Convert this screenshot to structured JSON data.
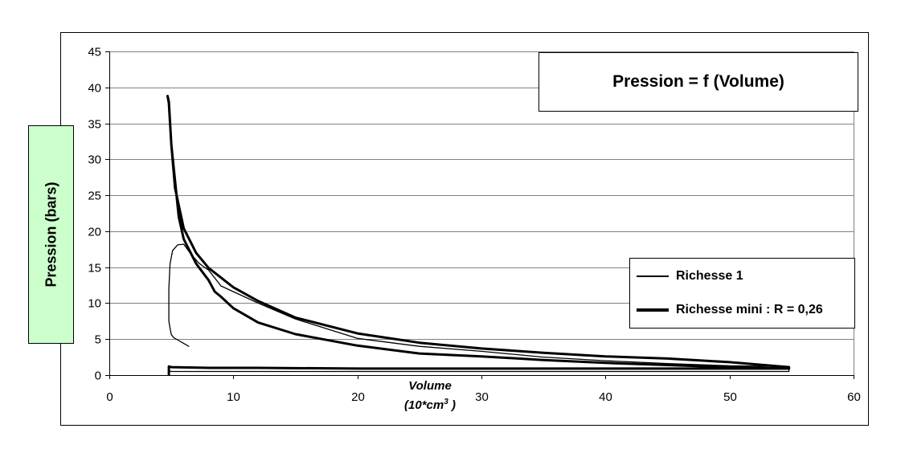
{
  "chart_data": {
    "type": "line",
    "title": "Pression = f (Volume)",
    "ylabel": "Pression  (bars)",
    "xlabel_line1": "Volume",
    "xlabel_line2_base": "(10*cm",
    "xlabel_line2_sup": "3",
    "xlabel_line2_end": " )",
    "xlim": [
      0,
      60
    ],
    "ylim": [
      0,
      45
    ],
    "x_ticks": [
      "0",
      "10",
      "20",
      "30",
      "40",
      "50",
      "60"
    ],
    "y_ticks": [
      "0",
      "5",
      "10",
      "15",
      "20",
      "25",
      "30",
      "35",
      "40",
      "45"
    ],
    "grid": "horizontal",
    "legend_position": "right",
    "series": [
      {
        "name": "Richesse 1",
        "line_weight": "thin",
        "x": [
          4.8,
          4.9,
          5.0,
          5.4,
          6.2,
          7.0,
          9.0,
          12.0,
          15.0,
          18.0,
          22.0,
          26.0,
          30.0,
          35.0,
          40.0,
          45.0,
          50.0,
          54.8,
          54.8,
          50.0,
          45.0,
          40.0,
          35.0,
          30.0,
          25.0,
          20.0,
          15.0,
          12.0,
          10.0,
          9.0,
          8.0,
          7.5,
          7.2,
          6.5,
          6.0,
          5.5,
          5.1,
          4.9,
          4.8,
          4.8,
          4.8,
          4.9,
          5.0,
          5.2,
          5.6,
          6.0,
          6.4
        ],
        "y": [
          0.7,
          0.55,
          0.5,
          0.5,
          0.5,
          0.5,
          0.5,
          0.5,
          0.5,
          0.5,
          0.5,
          0.5,
          0.5,
          0.5,
          0.5,
          0.5,
          0.5,
          0.5,
          1.2,
          1.3,
          1.6,
          2.0,
          2.5,
          3.3,
          4.0,
          5.1,
          7.8,
          10.0,
          11.6,
          12.4,
          14.6,
          15.2,
          15.6,
          17.0,
          18.2,
          18.1,
          17.3,
          15.5,
          12.0,
          9.5,
          7.5,
          6.5,
          5.6,
          5.2,
          4.8,
          4.4,
          4.0
        ]
      },
      {
        "name": "Richesse mini : R = 0,26",
        "line_weight": "thick",
        "x": [
          4.8,
          4.8,
          5.0,
          8.0,
          12.0,
          20.0,
          30.0,
          40.0,
          50.0,
          54.8,
          54.8,
          50.0,
          45.0,
          40.0,
          35.0,
          30.0,
          25.0,
          20.0,
          15.0,
          12.0,
          10.0,
          8.0,
          7.0,
          6.0,
          5.3,
          5.0,
          4.8,
          4.7,
          4.8,
          5.0,
          5.3,
          5.6,
          6.0,
          7.0,
          8.0,
          8.5,
          9.0,
          10.0,
          12.0,
          15.0,
          20.0,
          25.0,
          30.0,
          35.0,
          40.0,
          45.0,
          50.0,
          54.8
        ],
        "y": [
          0.1,
          1.2,
          1.1,
          1.0,
          1.0,
          0.9,
          0.9,
          0.9,
          0.9,
          0.9,
          1.1,
          1.8,
          2.3,
          2.6,
          3.1,
          3.7,
          4.5,
          5.8,
          8.0,
          10.3,
          12.2,
          14.9,
          17.0,
          20.4,
          26.0,
          32.0,
          37.8,
          38.8,
          38.0,
          32.0,
          27.0,
          22.0,
          18.9,
          15.5,
          13.2,
          11.6,
          10.9,
          9.3,
          7.3,
          5.7,
          4.1,
          3.0,
          2.6,
          2.1,
          1.7,
          1.4,
          1.1,
          0.9
        ]
      }
    ]
  }
}
